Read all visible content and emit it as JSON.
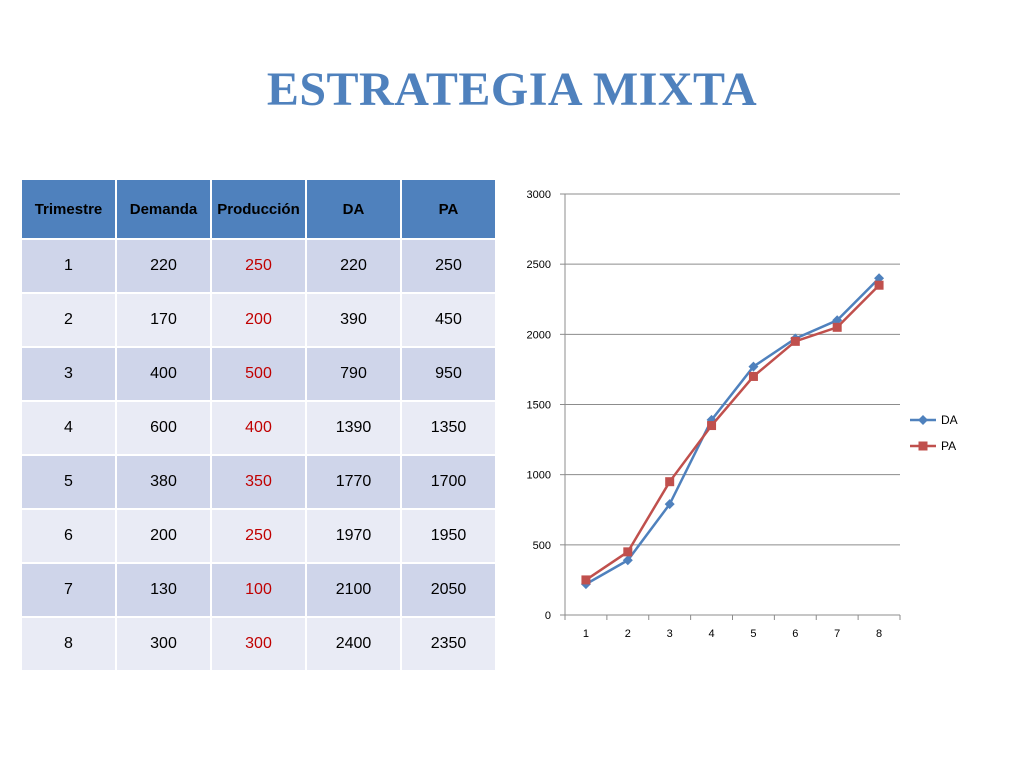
{
  "slide": {
    "title": "ESTRATEGIA MIXTA"
  },
  "table": {
    "headers": [
      "Trimestre",
      "Demanda",
      "Producción",
      "DA",
      "PA"
    ],
    "rows": [
      [
        "1",
        "220",
        "250",
        "220",
        "250"
      ],
      [
        "2",
        "170",
        "200",
        "390",
        "450"
      ],
      [
        "3",
        "400",
        "500",
        "790",
        "950"
      ],
      [
        "4",
        "600",
        "400",
        "1390",
        "1350"
      ],
      [
        "5",
        "380",
        "350",
        "1770",
        "1700"
      ],
      [
        "6",
        "200",
        "250",
        "1970",
        "1950"
      ],
      [
        "7",
        "130",
        "100",
        "2100",
        "2050"
      ],
      [
        "8",
        "300",
        "300",
        "2400",
        "2350"
      ]
    ],
    "colors": {
      "header_bg": "#4f81bd",
      "row_dark": "#cfd5ea",
      "row_light": "#e9ebf5",
      "produccion_text": "#c00000"
    }
  },
  "chart_data": {
    "type": "line",
    "title": "",
    "xlabel": "",
    "ylabel": "",
    "categories": [
      "1",
      "2",
      "3",
      "4",
      "5",
      "6",
      "7",
      "8"
    ],
    "ylim": [
      0,
      3000
    ],
    "yticks": [
      0,
      500,
      1000,
      1500,
      2000,
      2500,
      3000
    ],
    "grid": true,
    "legend": "right",
    "series": [
      {
        "name": "DA",
        "values": [
          220,
          390,
          790,
          1390,
          1770,
          1970,
          2100,
          2400
        ],
        "color": "#4f81bd",
        "marker": "diamond"
      },
      {
        "name": "PA",
        "values": [
          250,
          450,
          950,
          1350,
          1700,
          1950,
          2050,
          2350
        ],
        "color": "#c0504d",
        "marker": "square"
      }
    ]
  }
}
